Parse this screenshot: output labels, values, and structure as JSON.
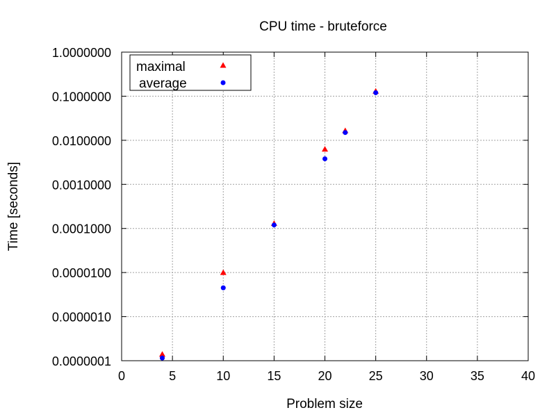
{
  "chart_data": {
    "type": "scatter",
    "title": "CPU time - bruteforce",
    "xlabel": "Problem size",
    "ylabel": "Time [seconds]",
    "xlim": [
      0,
      40
    ],
    "ylim": [
      1e-07,
      1
    ],
    "yscale": "log",
    "grid": true,
    "legend_position": "top-left",
    "x_ticks": [
      0,
      5,
      10,
      15,
      20,
      25,
      30,
      35,
      40
    ],
    "x_tick_labels": [
      "0",
      "5",
      "10",
      "15",
      "20",
      "25",
      "30",
      "35",
      "40"
    ],
    "y_ticks": [
      1e-07,
      1e-06,
      1e-05,
      0.0001,
      0.001,
      0.01,
      0.1,
      1
    ],
    "y_tick_labels": [
      "0.0000001",
      "0.0000010",
      "0.0000100",
      "0.0001000",
      "0.0010000",
      "0.0100000",
      "0.1000000",
      "1.0000000"
    ],
    "series": [
      {
        "name": "maximal",
        "marker": "triangle",
        "color": "#ff0000",
        "x": [
          4,
          10,
          15,
          20,
          22,
          25
        ],
        "y": [
          1.4e-07,
          1e-05,
          0.00013,
          0.0063,
          0.0165,
          0.13
        ]
      },
      {
        "name": "average",
        "marker": "circle",
        "color": "#0000ff",
        "x": [
          4,
          10,
          15,
          20,
          22,
          25
        ],
        "y": [
          1.15e-07,
          4.5e-06,
          0.00012,
          0.0038,
          0.015,
          0.12
        ]
      }
    ]
  }
}
